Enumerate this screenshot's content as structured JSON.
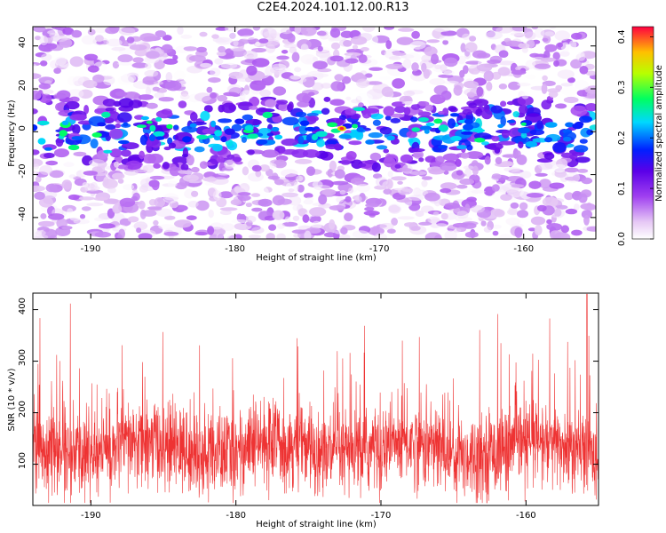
{
  "title": "C2E4.2024.101.12.00.R13",
  "chart_data": [
    {
      "type": "heatmap",
      "xlabel": "Height of straight line (km)",
      "ylabel": "Frequency (Hz)",
      "xlim": [
        -194,
        -155
      ],
      "ylim": [
        -50,
        49
      ],
      "xticks": [
        -190,
        -180,
        -170,
        -160
      ],
      "yticks": [
        -40,
        -20,
        0,
        20,
        40
      ],
      "colorbar": {
        "label": "Normalized spectral amplitude",
        "range": [
          0.0,
          0.42
        ],
        "ticks": [
          "0.0",
          "0.1",
          "0.2",
          "0.3",
          "0.4"
        ],
        "colormap": "white-purple-blue-cyan-green-yellow-red"
      },
      "band": {
        "center_frequency_hz": 0,
        "half_width_hz": 15,
        "peak_amplitude": 0.41,
        "peak_height_km": -172.6
      }
    },
    {
      "type": "line",
      "xlabel": "Height of straight line (km)",
      "ylabel": "SNR (10 * v/v)",
      "xlim": [
        -194,
        -155
      ],
      "ylim": [
        20,
        432
      ],
      "xticks": [
        -190,
        -180,
        -170,
        -160
      ],
      "yticks": [
        100,
        200,
        300,
        400
      ],
      "color": "#ee3333",
      "series_summary": {
        "typical_low": 60,
        "typical_high": 230,
        "mean": 130,
        "max": 430,
        "max_at_km": -155.8,
        "min": 25
      }
    }
  ]
}
